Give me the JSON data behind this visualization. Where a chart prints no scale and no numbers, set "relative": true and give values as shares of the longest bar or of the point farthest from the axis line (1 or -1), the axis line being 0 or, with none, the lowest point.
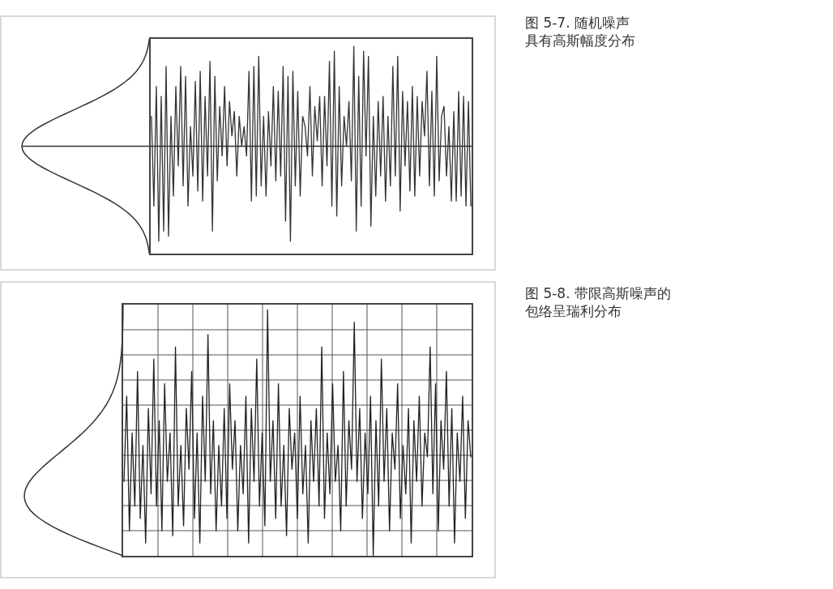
{
  "chart_data": [
    {
      "type": "line",
      "relative": true,
      "color": "#333333",
      "annotations": [
        "图 5-7. 随机噪声具有高斯幅度分布"
      ],
      "ref_lines": [
        {
          "axis": "y",
          "value": 0
        }
      ],
      "categories": [
        null,
        null,
        null,
        null,
        null,
        null,
        null,
        null,
        null,
        null,
        null,
        null,
        null,
        null,
        null,
        null,
        null,
        null,
        null,
        null,
        null,
        null,
        null,
        null,
        null,
        null,
        null,
        null,
        null,
        null,
        null,
        null,
        null,
        null,
        null,
        null,
        null,
        null,
        null,
        null,
        null,
        null,
        null,
        null,
        null,
        null,
        null,
        null,
        null,
        null,
        null,
        null,
        null,
        null,
        null,
        null,
        null,
        null,
        null,
        null,
        null,
        null,
        null,
        null,
        null,
        null,
        null,
        null,
        null,
        null,
        null,
        null,
        null,
        null,
        null,
        null,
        null,
        null,
        null,
        null,
        null,
        null,
        null,
        null,
        null,
        null,
        null,
        null,
        null,
        null,
        null,
        null,
        null,
        null,
        null,
        null,
        null,
        null,
        null,
        null,
        null,
        null,
        null,
        null,
        null,
        null,
        null,
        null,
        null,
        null,
        null,
        null,
        null,
        null,
        null,
        null,
        null,
        null,
        null,
        null,
        null,
        null,
        null,
        null,
        null,
        null,
        null,
        null,
        null,
        null,
        null,
        null
      ],
      "values": [
        0.3,
        -0.6,
        0.6,
        -0.95,
        0.5,
        -0.85,
        0.8,
        -0.9,
        0.3,
        -0.5,
        0.6,
        -0.2,
        0.8,
        -0.4,
        0.7,
        -0.6,
        0.2,
        -0.3,
        0.65,
        -0.45,
        0.75,
        -0.55,
        0.5,
        -0.3,
        0.85,
        -0.85,
        0.7,
        -0.35,
        0.4,
        -0.1,
        0.6,
        -0.2,
        0.45,
        0.1,
        0.35,
        -0.3,
        0.3,
        0.0,
        0.2,
        -0.1,
        0.75,
        -0.55,
        0.8,
        -0.5,
        0.9,
        -0.4,
        0.3,
        -0.5,
        0.35,
        -0.2,
        0.6,
        -0.35,
        0.55,
        -0.3,
        0.8,
        -0.75,
        0.7,
        -0.95,
        0.75,
        -0.4,
        0.55,
        -0.5,
        0.3,
        0.2,
        -0.1,
        0.6,
        -0.3,
        0.4,
        0.05,
        0.5,
        -0.4,
        0.5,
        -0.2,
        0.85,
        -0.6,
        0.95,
        -0.7,
        0.6,
        -0.4,
        0.3,
        0.0,
        0.45,
        -0.35,
        1.0,
        -0.85,
        0.7,
        -0.6,
        0.95,
        -0.1,
        0.9,
        -0.8,
        0.3,
        -0.5,
        0.45,
        -0.3,
        0.5,
        -0.55,
        0.3,
        -0.4,
        0.8,
        -0.3,
        0.9,
        -0.65,
        0.55,
        -0.2,
        0.45,
        -0.45,
        0.6,
        -0.5,
        0.5,
        -0.3,
        0.45,
        0.1,
        0.75,
        -0.4,
        0.55,
        -0.5,
        0.9,
        -0.35,
        0.3,
        0.4,
        -0.3,
        0.2,
        -0.55,
        0.35,
        -0.55,
        0.55,
        -0.5,
        0.5,
        -0.6,
        0.45,
        -0.6
      ]
    },
    {
      "type": "line",
      "relative": true,
      "color": "#222222",
      "grid": true,
      "annotations": [
        "图 5-8. 带限高斯噪声的包络呈瑞利分布"
      ],
      "categories": [
        null,
        null,
        null,
        null,
        null,
        null,
        null,
        null,
        null,
        null,
        null,
        null,
        null,
        null,
        null,
        null,
        null,
        null,
        null,
        null,
        null,
        null,
        null,
        null,
        null,
        null,
        null,
        null,
        null,
        null,
        null,
        null,
        null,
        null,
        null,
        null,
        null,
        null,
        null,
        null,
        null,
        null,
        null,
        null,
        null,
        null,
        null,
        null,
        null,
        null,
        null,
        null,
        null,
        null,
        null,
        null,
        null,
        null,
        null,
        null,
        null,
        null,
        null,
        null,
        null,
        null,
        null,
        null,
        null,
        null,
        null,
        null,
        null,
        null,
        null,
        null,
        null,
        null,
        null,
        null,
        null,
        null,
        null,
        null,
        null,
        null,
        null,
        null,
        null,
        null,
        null,
        null,
        null,
        null,
        null,
        null,
        null,
        null,
        null,
        null,
        null,
        null,
        null,
        null,
        null,
        null,
        null,
        null,
        null,
        null,
        null,
        null,
        null,
        null,
        null,
        null,
        null,
        null,
        null,
        null,
        null,
        null,
        null,
        null,
        null,
        null,
        null,
        null,
        null
      ],
      "values": [
        0.3,
        0.65,
        0.1,
        0.5,
        0.2,
        0.75,
        0.15,
        0.45,
        0.05,
        0.6,
        0.25,
        0.8,
        0.2,
        0.55,
        0.1,
        0.7,
        0.3,
        0.5,
        0.08,
        0.85,
        0.2,
        0.45,
        0.12,
        0.6,
        0.35,
        0.75,
        0.15,
        0.5,
        0.05,
        0.65,
        0.3,
        0.9,
        0.25,
        0.55,
        0.1,
        0.45,
        0.2,
        0.6,
        0.15,
        0.7,
        0.35,
        0.55,
        0.1,
        0.45,
        0.25,
        0.65,
        0.05,
        0.6,
        0.3,
        0.8,
        0.2,
        0.5,
        0.12,
        1.0,
        0.3,
        0.55,
        0.15,
        0.7,
        0.2,
        0.45,
        0.08,
        0.6,
        0.35,
        0.5,
        0.15,
        0.65,
        0.25,
        0.45,
        0.05,
        0.55,
        0.3,
        0.6,
        0.2,
        0.85,
        0.15,
        0.5,
        0.25,
        0.7,
        0.3,
        0.45,
        0.1,
        0.75,
        0.2,
        0.55,
        0.35,
        0.95,
        0.3,
        0.6,
        0.15,
        0.5,
        0.25,
        0.65,
        0.0,
        0.55,
        0.2,
        0.8,
        0.3,
        0.6,
        0.1,
        0.5,
        0.35,
        0.7,
        0.15,
        0.45,
        0.25,
        0.6,
        0.05,
        0.55,
        0.3,
        0.65,
        0.2,
        0.5,
        0.4,
        0.85,
        0.25,
        0.7,
        0.1,
        0.55,
        0.35,
        0.75,
        0.2,
        0.6,
        0.05,
        0.5,
        0.3,
        0.65,
        0.15,
        0.55,
        0.4
      ]
    }
  ]
}
